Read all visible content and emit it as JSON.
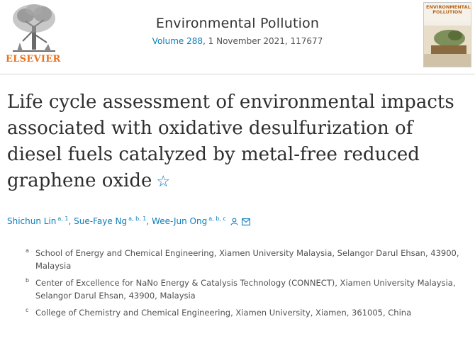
{
  "publisher": {
    "name": "ELSEVIER"
  },
  "journal": {
    "title": "Environmental Pollution",
    "volume_link": "Volume 288",
    "issue_info": ", 1 November 2021, 117677",
    "cover_title": "ENVIRONMENTAL POLLUTION"
  },
  "article": {
    "title": "Life cycle assessment of environmental impacts associated with oxidative desulfurization of diesel fuels catalyzed by metal-free reduced graphene oxide",
    "star_icon": "☆"
  },
  "authors": [
    {
      "name": "Shichun Lin",
      "sup": "a, 1"
    },
    {
      "name": "Sue-Faye Ng",
      "sup": "a, b, 1"
    },
    {
      "name": "Wee-Jun Ong",
      "sup": "a, b, c"
    }
  ],
  "author_separator": ",",
  "affiliations": [
    {
      "label": "a",
      "text": "School of Energy and Chemical Engineering, Xiamen University Malaysia, Selangor Darul Ehsan, 43900, Malaysia"
    },
    {
      "label": "b",
      "text": "Center of Excellence for NaNo Energy & Catalysis Technology (CONNECT), Xiamen University Malaysia, Selangor Darul Ehsan, 43900, Malaysia"
    },
    {
      "label": "c",
      "text": "College of Chemistry and Chemical Engineering, Xiamen University, Xiamen, 361005, China"
    }
  ],
  "colors": {
    "link": "#0c7dbb",
    "elsevier_orange": "#e9711c",
    "text": "#2e2e2e"
  }
}
